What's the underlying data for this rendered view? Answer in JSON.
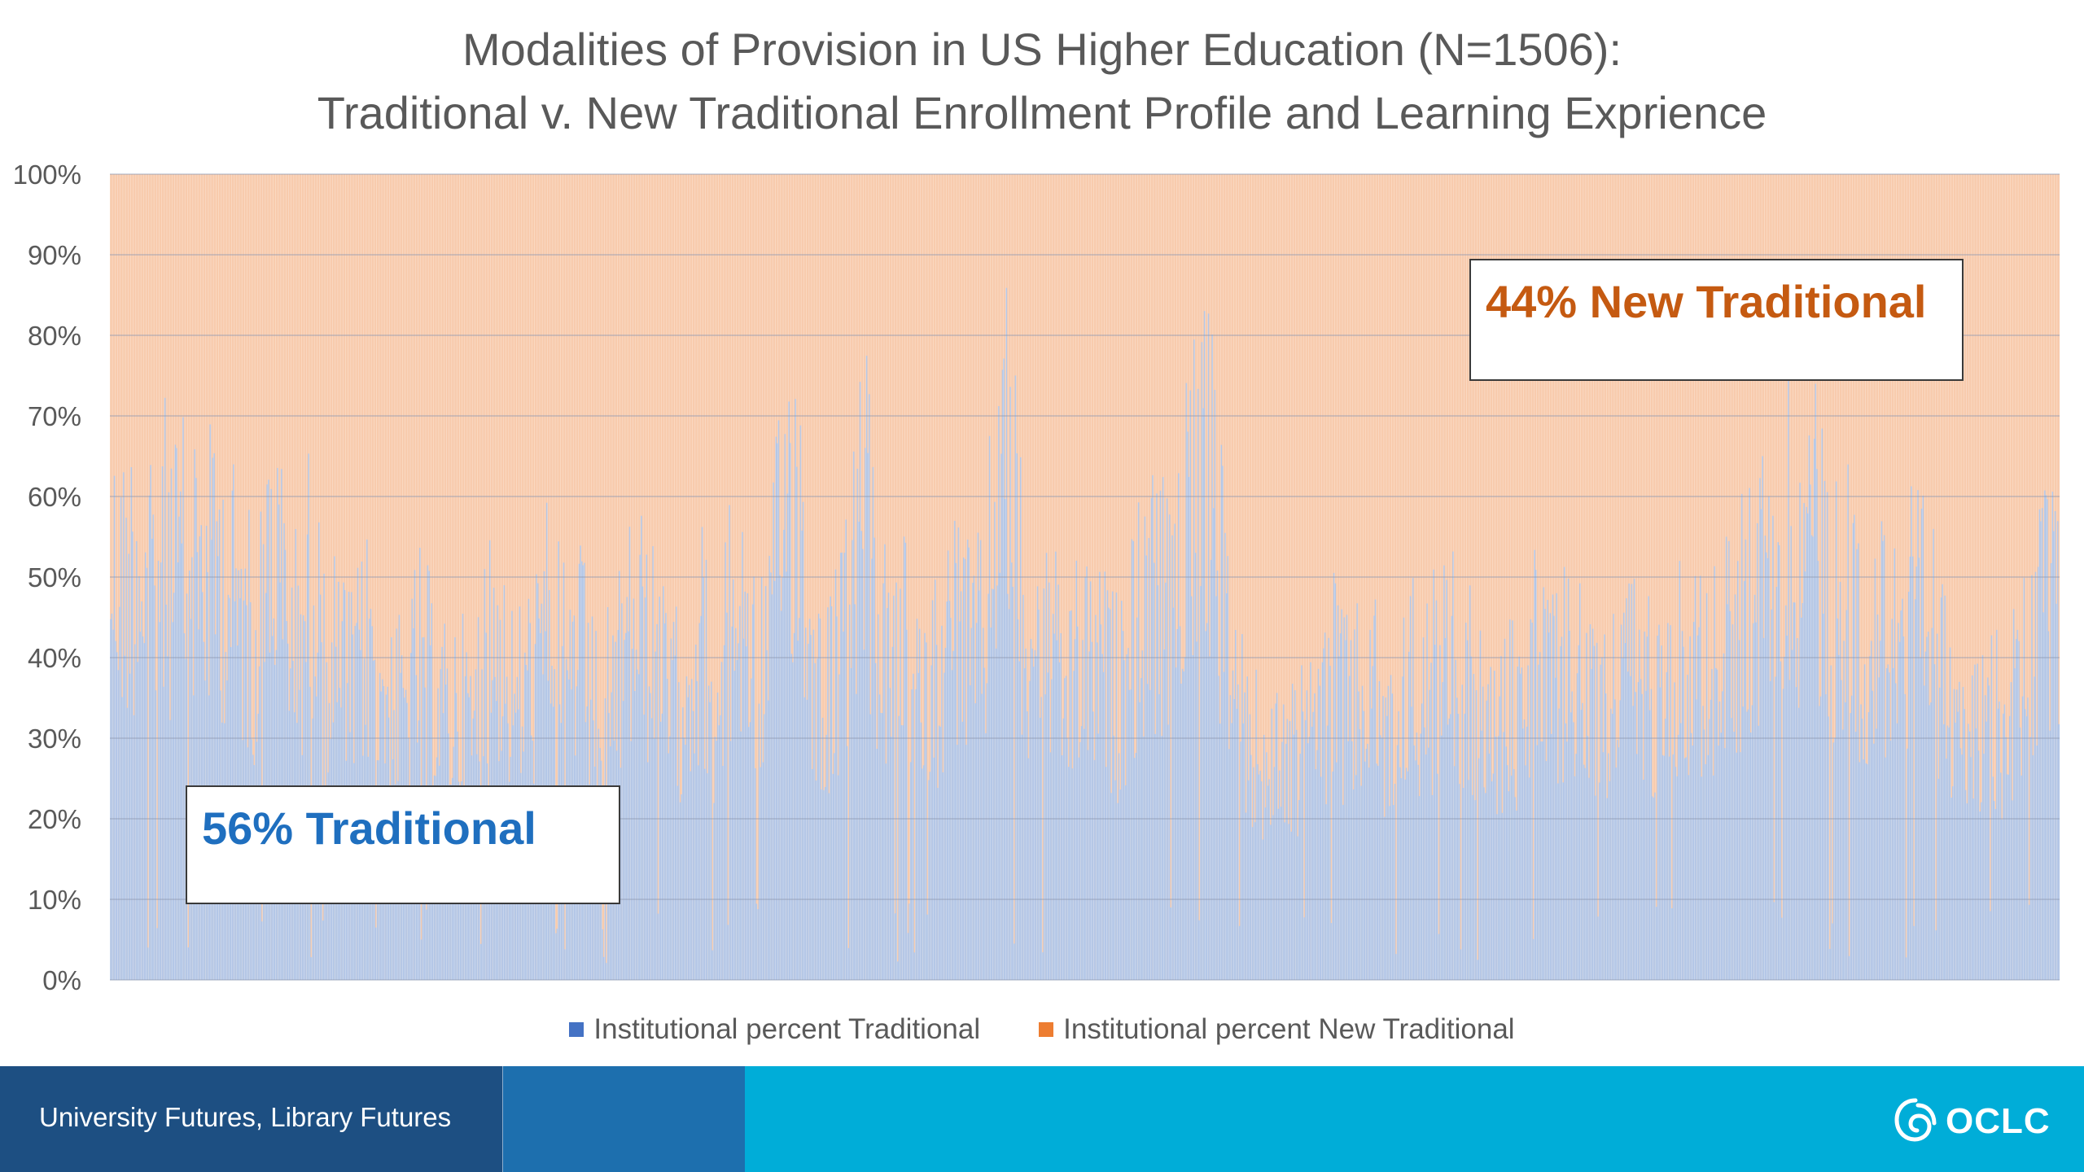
{
  "chart_data": {
    "type": "bar",
    "stacked": "percent",
    "title": "Modalities of Provision in US Higher Education (N=1506):",
    "subtitle": "Traditional v. New Traditional Enrollment Profile and Learning Exprience",
    "n_institutions": 1506,
    "ylim": [
      0,
      100
    ],
    "y_ticks": [
      "0%",
      "10%",
      "20%",
      "30%",
      "40%",
      "50%",
      "60%",
      "70%",
      "80%",
      "90%",
      "100%"
    ],
    "grid": true,
    "legend_position": "bottom",
    "series": [
      {
        "name": "Institutional percent Traditional",
        "color": "#4472C4",
        "fill_color": "#b4c7e7",
        "profile_percent": [
          70,
          67,
          72,
          64,
          73,
          69,
          72,
          68,
          71,
          66,
          60,
          58,
          75,
          62,
          56,
          71,
          52,
          54,
          48,
          57,
          52,
          45,
          46,
          55,
          50,
          44,
          47,
          42,
          59,
          57,
          46,
          50,
          54,
          67,
          53,
          55,
          44,
          48,
          52,
          61,
          57,
          50,
          46,
          53,
          58,
          46,
          59,
          63,
          52,
          55,
          79,
          86,
          58,
          47,
          52,
          60,
          84,
          60,
          52,
          56,
          48,
          51,
          54,
          62,
          55,
          56,
          85,
          88,
          62,
          58,
          57,
          46,
          53,
          53,
          51,
          48,
          58,
          62,
          66,
          56,
          86,
          87,
          82,
          60,
          44,
          41,
          33,
          40,
          37,
          41,
          45,
          52,
          46,
          47,
          49,
          38,
          46,
          51,
          49,
          54,
          55,
          50,
          45,
          40,
          46,
          43,
          55,
          47,
          53,
          54,
          44,
          46,
          48,
          53,
          50,
          49,
          54,
          55,
          54,
          50,
          56,
          60,
          64,
          68,
          76,
          75,
          74,
          75,
          61,
          66,
          60,
          56,
          59,
          63,
          62,
          60,
          54,
          47,
          37,
          45,
          45,
          42,
          49,
          58,
          61,
          63
        ]
      },
      {
        "name": "Institutional percent New Traditional",
        "color": "#ED7D31",
        "fill_color": "#f8cbad"
      }
    ]
  },
  "callouts": {
    "traditional": "56% Traditional",
    "new_traditional": "44% New Traditional"
  },
  "footer": {
    "text": "University Futures, Library Futures",
    "logo_text": "OCLC",
    "colors": {
      "left": "#1d4f82",
      "middle": "#1d6fae",
      "right": "#00add8"
    }
  }
}
